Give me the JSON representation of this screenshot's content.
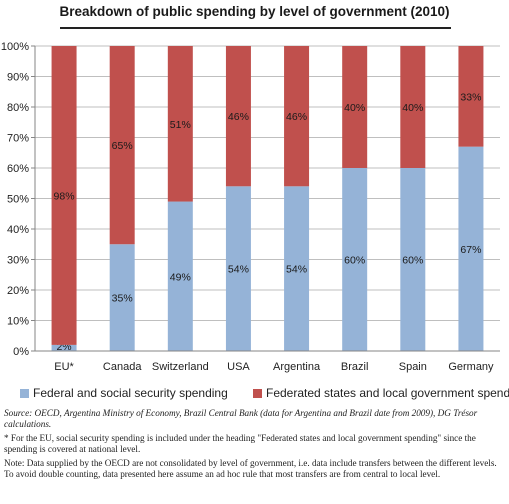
{
  "title": "Breakdown of public spending by level of government (2010)",
  "chart_data": {
    "type": "bar",
    "stacked": true,
    "percent": true,
    "categories": [
      "EU*",
      "Canada",
      "Switzerland",
      "USA",
      "Argentina",
      "Brazil",
      "Spain",
      "Germany"
    ],
    "series": [
      {
        "name": "Federal and social security spending",
        "color": "#95b3d7",
        "values": [
          2,
          35,
          49,
          54,
          54,
          60,
          60,
          67
        ]
      },
      {
        "name": "Federated states and local government spending",
        "color": "#c0504d",
        "values": [
          98,
          65,
          51,
          46,
          46,
          40,
          40,
          33
        ]
      }
    ],
    "data_labels": [
      [
        "2%",
        "35%",
        "49%",
        "54%",
        "54%",
        "60%",
        "60%",
        "67%"
      ],
      [
        "98%",
        "65%",
        "51%",
        "46%",
        "46%",
        "40%",
        "40%",
        "33%"
      ]
    ],
    "ylim": [
      0,
      100
    ],
    "yticks": [
      0,
      10,
      20,
      30,
      40,
      50,
      60,
      70,
      80,
      90,
      100
    ],
    "ytick_labels": [
      "0%",
      "10%",
      "20%",
      "30%",
      "40%",
      "50%",
      "60%",
      "70%",
      "80%",
      "90%",
      "100%"
    ],
    "grid": true,
    "legend_position": "bottom"
  },
  "notes": {
    "source": "Source: OECD, Argentina Ministry of Economy, Brazil Central Bank (data for Argentina and Brazil date from 2009), DG Trésor calculations.",
    "eu_note": "* For the EU, social security spending is included under the heading \"Federated states and local government spending\" since the spending is covered at national level.",
    "oecd_note": "Note: Data supplied by the OECD are not consolidated by level of government, i.e. data include transfers between the different levels. To avoid double counting, data presented here assume an ad hoc rule that most transfers are from central to local level."
  }
}
